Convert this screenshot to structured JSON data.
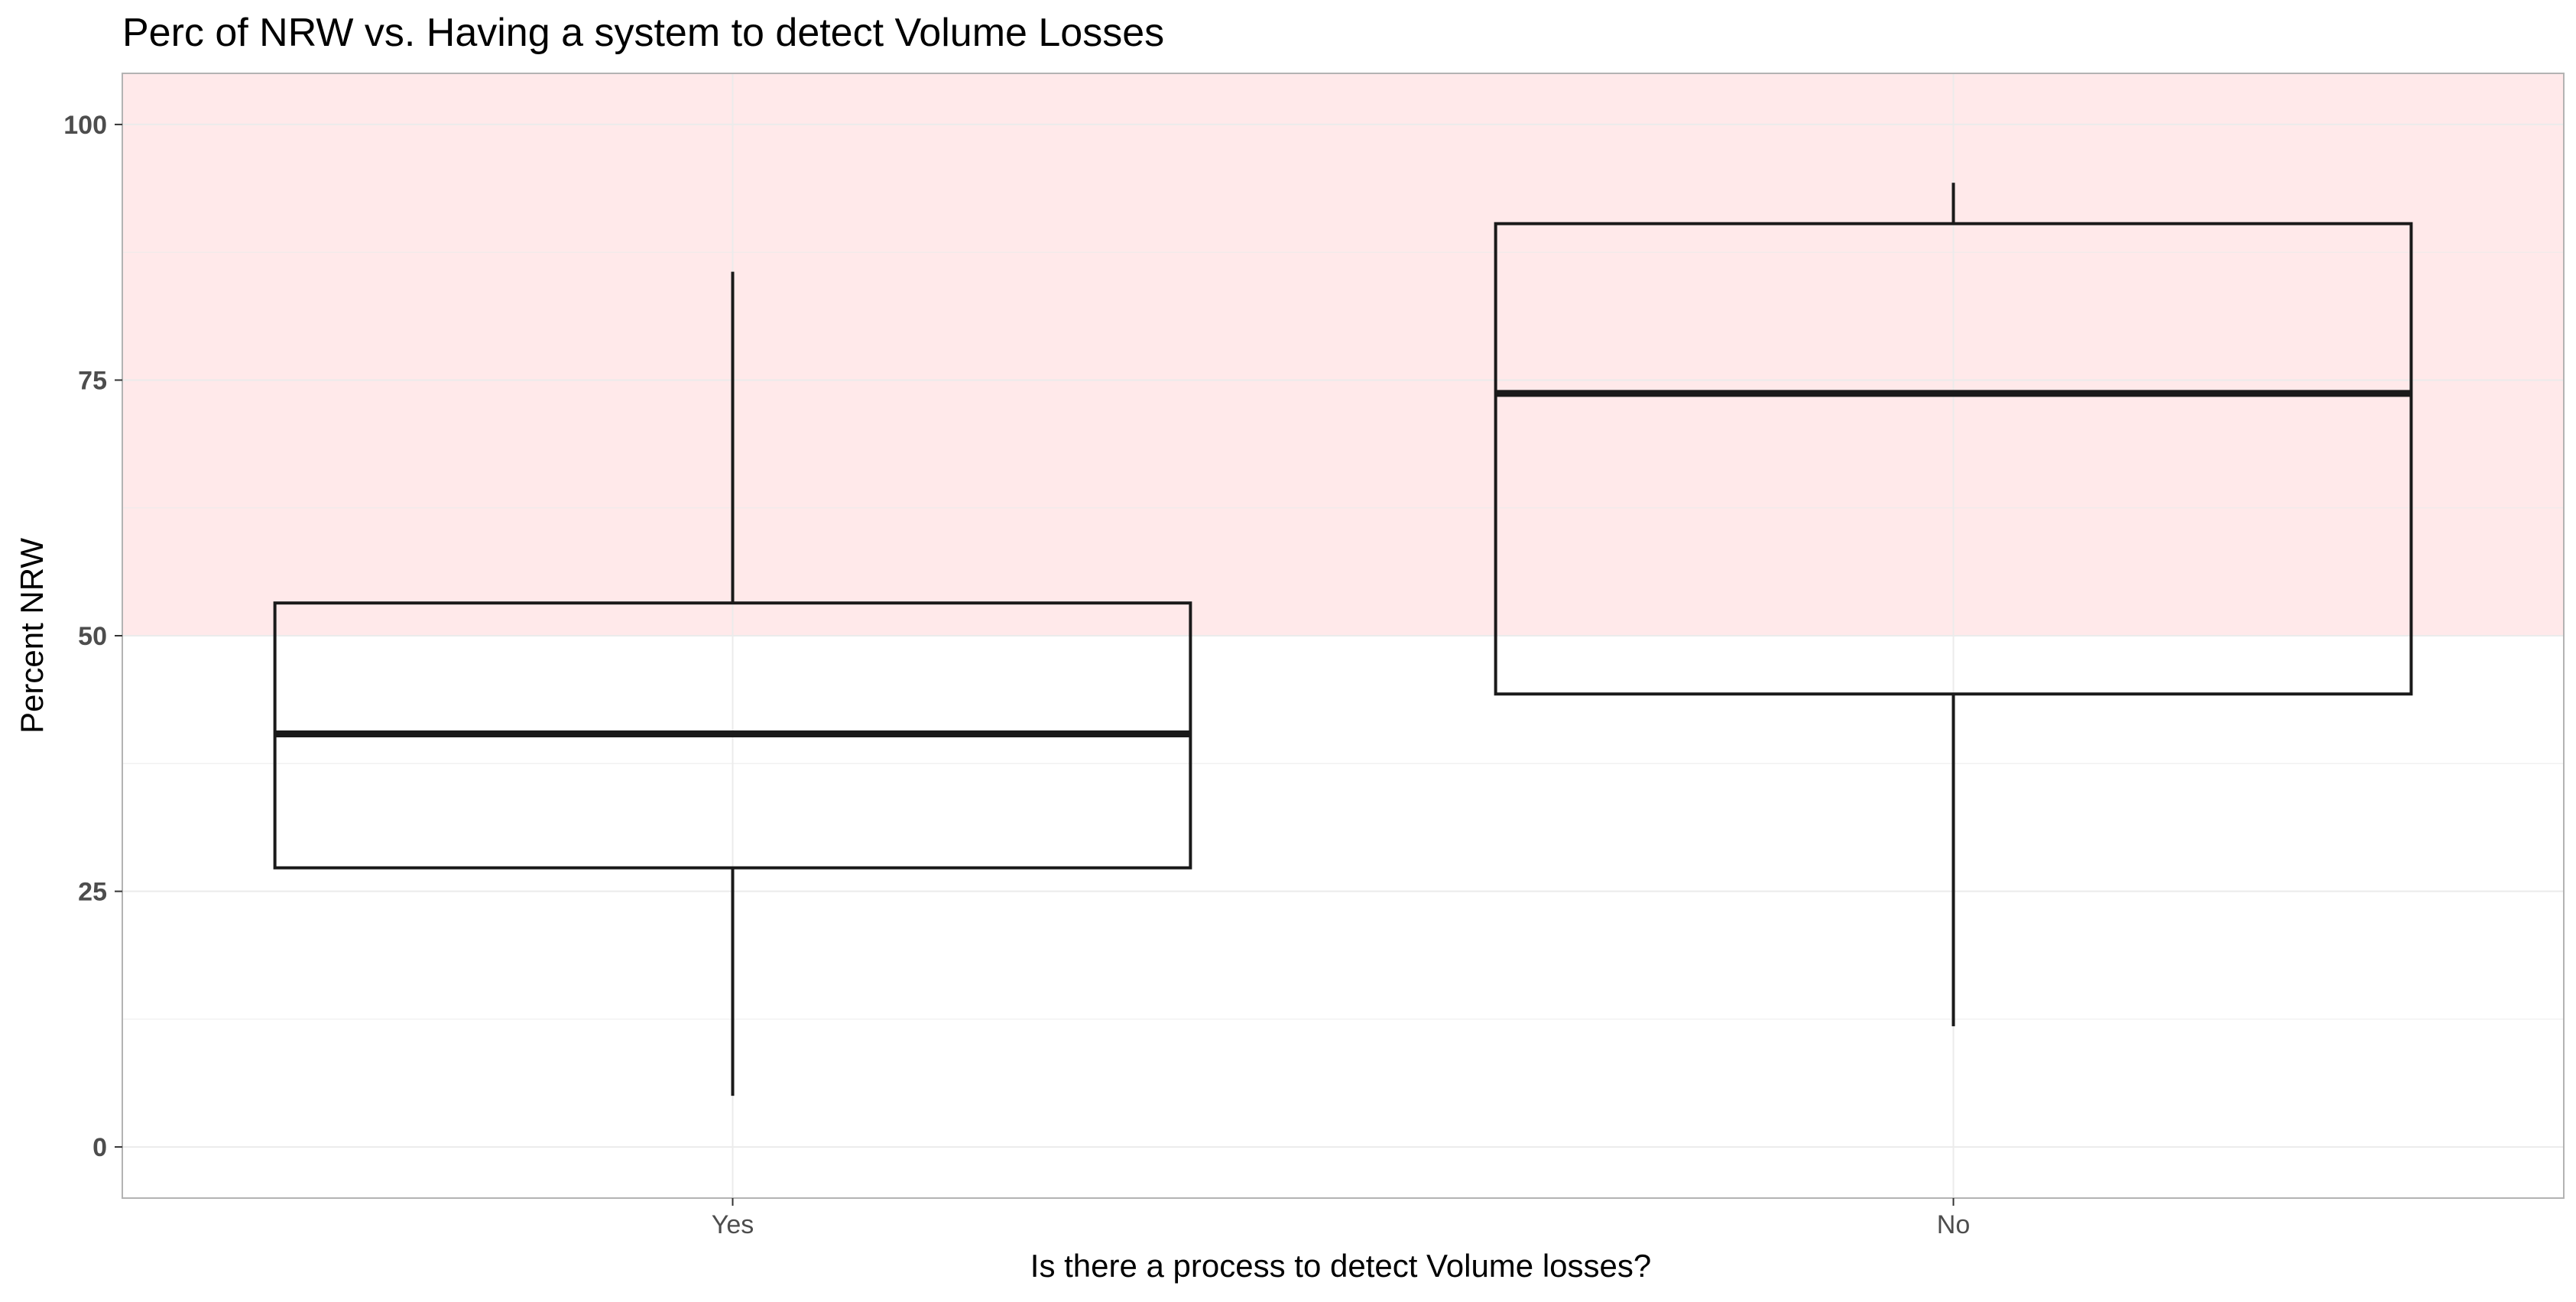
{
  "chart_data": {
    "type": "boxplot",
    "title": "Perc of NRW vs. Having a system to detect Volume Losses",
    "xlabel": "Is there a process to detect Volume losses?",
    "ylabel": "Percent NRW",
    "categories": [
      "Yes",
      "No"
    ],
    "ylim": [
      -5,
      105
    ],
    "yticks": [
      0,
      25,
      50,
      75,
      100
    ],
    "grid": true,
    "highlight_band": {
      "from": 50,
      "to": 105,
      "color": "#ffe9ea"
    },
    "boxes": [
      {
        "category": "Yes",
        "min": 5,
        "q1": 27.3,
        "median": 40.4,
        "q3": 53.2,
        "max": 85.6
      },
      {
        "category": "No",
        "min": 11.8,
        "q1": 44.3,
        "median": 73.7,
        "q3": 90.3,
        "max": 94.3
      }
    ],
    "colors": {
      "box_line": "#1a1a1a",
      "grid": "#ebebeb",
      "panel_border": "#b3b3b3",
      "tick_text": "#4d4d4d"
    }
  }
}
